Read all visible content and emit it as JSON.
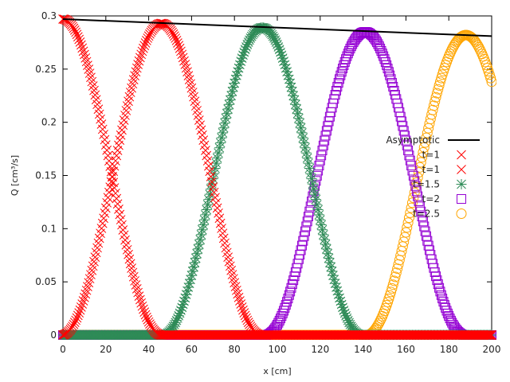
{
  "chart_data": {
    "type": "scatter",
    "title": "",
    "xlabel": "x [cm]",
    "ylabel": "Q [cm³/s]",
    "xlim": [
      0,
      200
    ],
    "ylim": [
      0,
      0.3
    ],
    "x_ticks": [
      "0",
      "20",
      "40",
      "60",
      "80",
      "100",
      "120",
      "140",
      "160",
      "180",
      "200"
    ],
    "y_ticks": [
      "0",
      "0.05",
      "0.1",
      "0.15",
      "0.2",
      "0.25",
      "0.3"
    ],
    "grid": false,
    "legend_position": "right-middle inside",
    "series": [
      {
        "name": "Asymptotic",
        "style": "line",
        "color": "#000000",
        "x": [
          0,
          200
        ],
        "y": [
          0.297,
          0.281
        ]
      },
      {
        "name": "t=1",
        "style": "marker-x",
        "color": "#ff0000",
        "description": "decaying half pulse starting at x=0",
        "peak_x": 0,
        "peak_y": 0.297,
        "zero_x": 46
      },
      {
        "name": "t=1",
        "style": "marker-x",
        "color": "#ff0000",
        "description": "pulse from x=0 to x~92",
        "peak_x": 46,
        "peak_y": 0.293,
        "support": [
          0,
          92
        ]
      },
      {
        "name": "t=1.5",
        "style": "marker-star",
        "color": "#2e8b57",
        "peak_x": 93,
        "peak_y": 0.289,
        "support": [
          46,
          140
        ]
      },
      {
        "name": "t=2",
        "style": "marker-square",
        "color": "#9400d3",
        "peak_x": 141,
        "peak_y": 0.285,
        "support": [
          94,
          188
        ]
      },
      {
        "name": "t=2.5",
        "style": "marker-circle",
        "color": "#ffa500",
        "peak_x": 188,
        "peak_y": 0.282,
        "support": [
          140,
          200
        ],
        "end_y": 0.245
      }
    ]
  },
  "legend": {
    "items": [
      {
        "label": "Asymptotic"
      },
      {
        "label": "t=1"
      },
      {
        "label": "t=1"
      },
      {
        "label": "t=1.5"
      },
      {
        "label": "t=2"
      },
      {
        "label": "t=2.5"
      }
    ]
  }
}
